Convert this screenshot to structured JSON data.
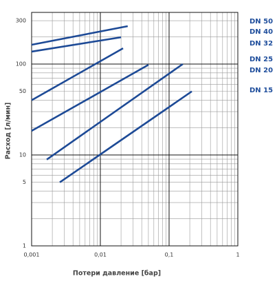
{
  "chart_data": {
    "type": "line",
    "log_x": true,
    "log_y": true,
    "xlabel": "Потери давление [бар]",
    "ylabel": "Расход [л/мин]",
    "xlim": [
      0.001,
      1
    ],
    "ylim": [
      1,
      370
    ],
    "xticks": [
      {
        "value": 0.001,
        "label": "0,001"
      },
      {
        "value": 0.01,
        "label": "0,01"
      },
      {
        "value": 0.1,
        "label": "0,1"
      },
      1
    ],
    "yticks": [
      1,
      5,
      10,
      50,
      100,
      300
    ],
    "x_minor_grid": [
      0.002,
      0.003,
      0.004,
      0.005,
      0.006,
      0.007,
      0.008,
      0.009,
      0.02,
      0.03,
      0.04,
      0.05,
      0.06,
      0.07,
      0.08,
      0.09,
      0.2,
      0.3,
      0.4,
      0.5,
      0.6,
      0.7,
      0.8,
      0.9
    ],
    "y_minor_grid": [
      2,
      3,
      4,
      6,
      7,
      8,
      9,
      20,
      30,
      40,
      60,
      70,
      80,
      90,
      200
    ],
    "grid": true,
    "series": [
      {
        "name": "DN 50",
        "color": "#1d4a96",
        "x": [
          0.001,
          0.025
        ],
        "values": [
          163,
          261
        ]
      },
      {
        "name": "DN 40",
        "color": "#1d4a96",
        "x": [
          0.001,
          0.02
        ],
        "values": [
          137,
          197
        ]
      },
      {
        "name": "DN 32",
        "color": "#1d4a96",
        "x": [
          0.001,
          0.0214
        ],
        "values": [
          40,
          149
        ]
      },
      {
        "name": "DN 25",
        "color": "#1d4a96",
        "x": [
          0.001,
          0.05
        ],
        "values": [
          18.4,
          98
        ]
      },
      {
        "name": "DN 20",
        "color": "#1d4a96",
        "x": [
          0.00166,
          0.158
        ],
        "values": [
          8.9,
          100
        ]
      },
      {
        "name": "DN 15",
        "color": "#1d4a96",
        "x": [
          0.00257,
          0.214
        ],
        "values": [
          5,
          50
        ]
      }
    ]
  }
}
